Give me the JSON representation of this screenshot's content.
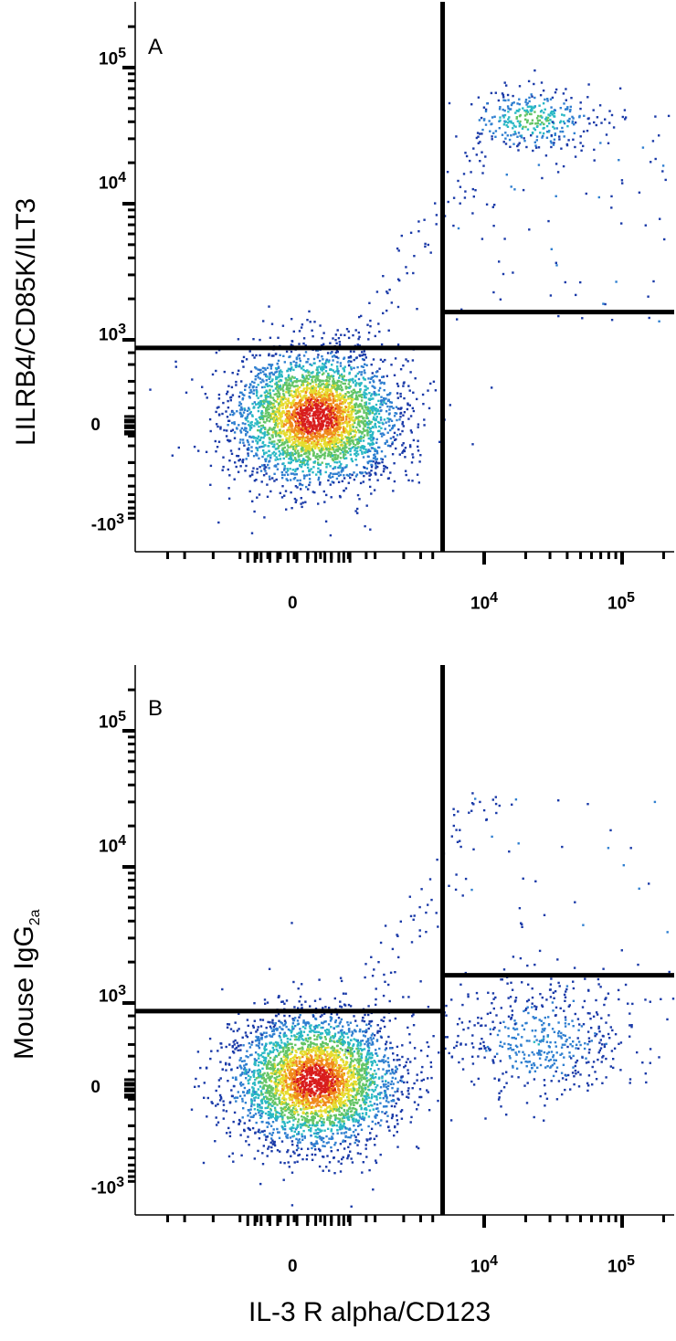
{
  "chart_data": [
    {
      "type": "scatter",
      "panel_label": "A",
      "ylabel": "LILRB4/CD85K/ILT3",
      "xlabel": "",
      "x_ticks": [
        {
          "value": "0",
          "text": "0",
          "sup": ""
        },
        {
          "value": "1e4",
          "text": "10",
          "sup": "4"
        },
        {
          "value": "1e5",
          "text": "10",
          "sup": "5"
        }
      ],
      "y_ticks": [
        {
          "value": "1e5",
          "text": "10",
          "sup": "5"
        },
        {
          "value": "1e4",
          "text": "10",
          "sup": "4"
        },
        {
          "value": "1e3",
          "text": "10",
          "sup": "3"
        },
        {
          "value": "0",
          "text": "0",
          "sup": ""
        },
        {
          "value": "-1e3",
          "text": "-10",
          "sup": "3"
        }
      ],
      "x_scale": "biexponential",
      "y_scale": "biexponential",
      "gates": {
        "x": 5000,
        "y_left": 800,
        "y_right": 1600
      },
      "populations": [
        {
          "name": "",
          "x_center": 150,
          "y_center": 50,
          "count": 3400
        },
        {
          "name": "",
          "x_center": 22000,
          "y_center": 42000,
          "count": 330
        }
      ],
      "grid": false,
      "colors": [
        "#1a3aa8",
        "#2f7fd0",
        "#29b8c4",
        "#64c566",
        "#e7dc2e",
        "#f08a1c",
        "#d81d1d"
      ]
    },
    {
      "type": "scatter",
      "panel_label": "B",
      "ylabel": "Mouse IgG",
      "ylabel_sub": "2a",
      "xlabel": "IL-3 R alpha/CD123",
      "x_ticks": [
        {
          "value": "0",
          "text": "0",
          "sup": ""
        },
        {
          "value": "1e4",
          "text": "10",
          "sup": "4"
        },
        {
          "value": "1e5",
          "text": "10",
          "sup": "5"
        }
      ],
      "y_ticks": [
        {
          "value": "1e5",
          "text": "10",
          "sup": "5"
        },
        {
          "value": "1e4",
          "text": "10",
          "sup": "4"
        },
        {
          "value": "1e3",
          "text": "10",
          "sup": "3"
        },
        {
          "value": "0",
          "text": "0",
          "sup": ""
        },
        {
          "value": "-1e3",
          "text": "-10",
          "sup": "3"
        }
      ],
      "x_scale": "biexponential",
      "y_scale": "biexponential",
      "gates": {
        "x": 5000,
        "y_left": 800,
        "y_right": 1600
      },
      "populations": [
        {
          "name": "",
          "x_center": 150,
          "y_center": 50,
          "count": 3400
        },
        {
          "name": "",
          "x_center": 25000,
          "y_center": 350,
          "count": 480
        }
      ],
      "grid": false,
      "colors": [
        "#1a3aa8",
        "#2f7fd0",
        "#29b8c4",
        "#64c566",
        "#e7dc2e",
        "#f08a1c",
        "#d81d1d"
      ]
    }
  ]
}
